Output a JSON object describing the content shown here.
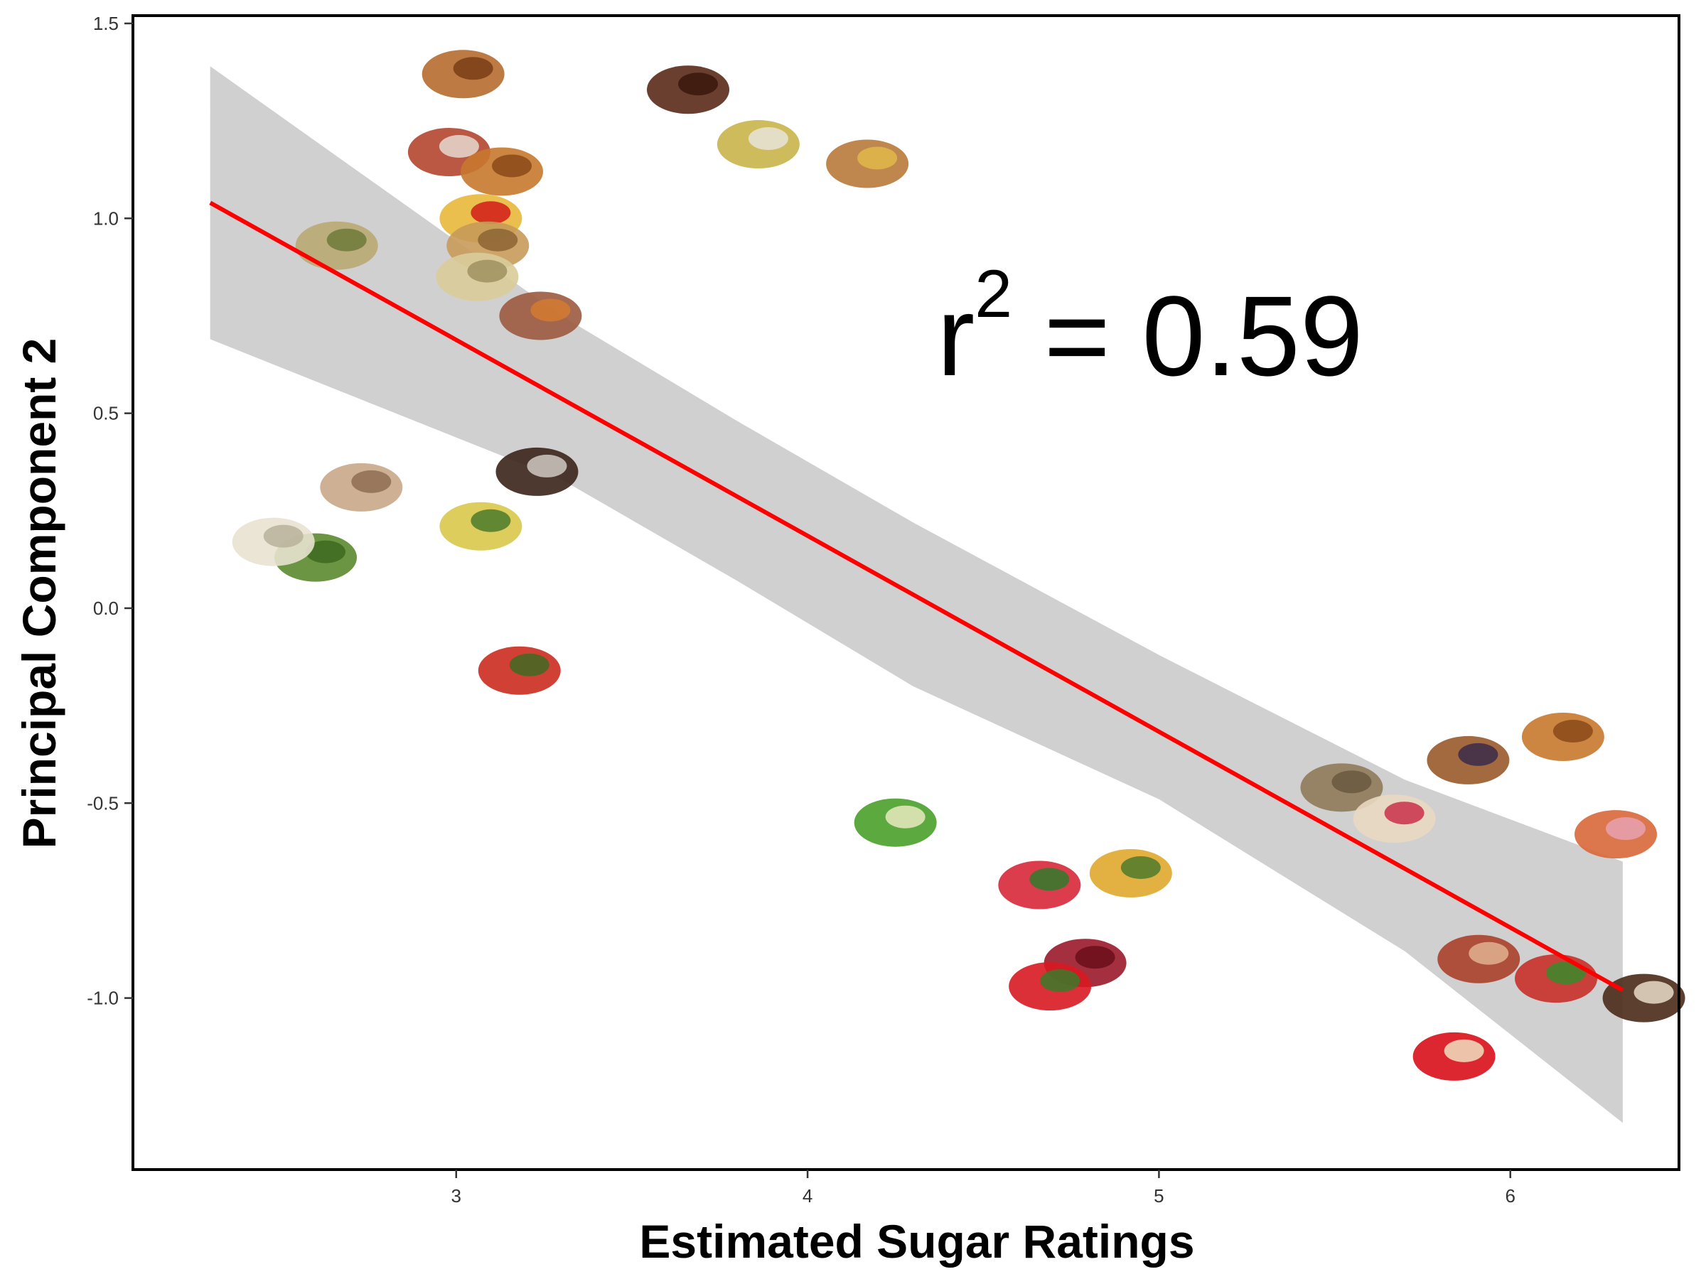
{
  "chart_data": {
    "type": "scatter",
    "title": "",
    "xlabel": "Estimated Sugar Ratings",
    "ylabel": "Principal Component 2",
    "xlim": [
      2.08,
      6.48
    ],
    "ylim": [
      -1.44,
      1.52
    ],
    "x_ticks": [
      3,
      4,
      5,
      6
    ],
    "x_tick_labels": [
      "3",
      "4",
      "5",
      "6"
    ],
    "y_ticks": [
      1.5,
      1.0,
      0.5,
      0.0,
      -0.5,
      -1.0
    ],
    "y_tick_labels": [
      "1.5",
      "1.0",
      "0.5",
      "0.0",
      "-0.5",
      "-1.0"
    ],
    "grid": false,
    "annotation": {
      "base": "r",
      "exponent": "2",
      "text": " = 0.59"
    },
    "regression": {
      "x0": 2.3,
      "y0": 1.04,
      "x1": 6.32,
      "y1": -0.98,
      "color": "#ff0000"
    },
    "confidence_band": {
      "color": "#d0d0d0",
      "upper": [
        [
          2.3,
          1.39
        ],
        [
          3.3,
          0.75
        ],
        [
          3.8,
          0.48
        ],
        [
          4.3,
          0.22
        ],
        [
          5.0,
          -0.12
        ],
        [
          5.7,
          -0.44
        ],
        [
          6.32,
          -0.65
        ]
      ],
      "lower": [
        [
          6.32,
          -1.32
        ],
        [
          5.7,
          -0.88
        ],
        [
          5.0,
          -0.49
        ],
        [
          4.3,
          -0.2
        ],
        [
          3.8,
          0.07
        ],
        [
          3.3,
          0.33
        ],
        [
          2.3,
          0.69
        ]
      ]
    },
    "points": [
      {
        "x": 2.66,
        "y": 0.93,
        "icon": "soup"
      },
      {
        "x": 2.6,
        "y": 0.13,
        "icon": "broccoli"
      },
      {
        "x": 2.48,
        "y": 0.17,
        "icon": "cauliflower"
      },
      {
        "x": 2.73,
        "y": 0.31,
        "icon": "mushrooms"
      },
      {
        "x": 3.02,
        "y": 1.37,
        "icon": "fried-chicken"
      },
      {
        "x": 2.98,
        "y": 1.17,
        "icon": "bacon"
      },
      {
        "x": 3.13,
        "y": 1.12,
        "icon": "onion-rings"
      },
      {
        "x": 3.07,
        "y": 1.0,
        "icon": "fries"
      },
      {
        "x": 3.09,
        "y": 0.93,
        "icon": "rice"
      },
      {
        "x": 3.06,
        "y": 0.85,
        "icon": "potatoes"
      },
      {
        "x": 3.24,
        "y": 0.75,
        "icon": "baked-potatoes"
      },
      {
        "x": 3.23,
        "y": 0.35,
        "icon": "coffee-grounds"
      },
      {
        "x": 3.07,
        "y": 0.21,
        "icon": "zucchini"
      },
      {
        "x": 3.18,
        "y": -0.16,
        "icon": "tomatoes"
      },
      {
        "x": 3.66,
        "y": 1.33,
        "icon": "sausages"
      },
      {
        "x": 3.86,
        "y": 1.19,
        "icon": "mac-and-cheese"
      },
      {
        "x": 4.17,
        "y": 1.14,
        "icon": "grilled-cheese"
      },
      {
        "x": 4.25,
        "y": -0.55,
        "icon": "apples"
      },
      {
        "x": 4.66,
        "y": -0.71,
        "icon": "watermelon"
      },
      {
        "x": 4.92,
        "y": -0.68,
        "icon": "pineapple"
      },
      {
        "x": 4.79,
        "y": -0.91,
        "icon": "raspberries"
      },
      {
        "x": 4.69,
        "y": -0.97,
        "icon": "strawberries"
      },
      {
        "x": 5.52,
        "y": -0.46,
        "icon": "cookies"
      },
      {
        "x": 5.67,
        "y": -0.54,
        "icon": "pastry"
      },
      {
        "x": 5.88,
        "y": -0.39,
        "icon": "muffin"
      },
      {
        "x": 6.15,
        "y": -0.33,
        "icon": "cinnamon-rolls"
      },
      {
        "x": 6.3,
        "y": -0.58,
        "icon": "donuts"
      },
      {
        "x": 5.91,
        "y": -0.9,
        "icon": "pie"
      },
      {
        "x": 6.13,
        "y": -0.95,
        "icon": "jelly-beans"
      },
      {
        "x": 6.38,
        "y": -1.0,
        "icon": "chocolate-cake"
      },
      {
        "x": 5.84,
        "y": -1.15,
        "icon": "candy-cane-popsicle"
      }
    ]
  }
}
